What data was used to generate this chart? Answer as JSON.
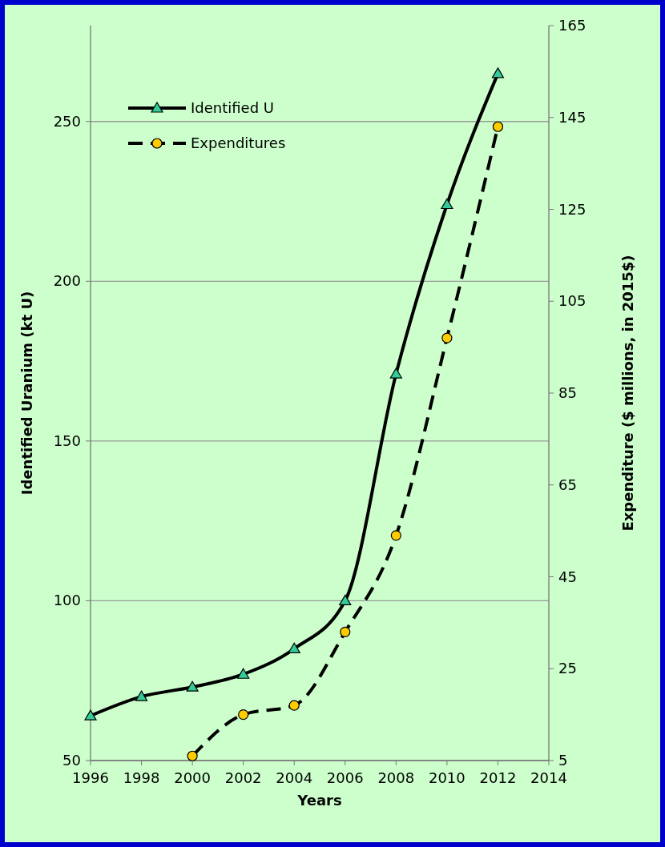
{
  "chart_data": {
    "type": "line",
    "xlabel": "Years",
    "ylabel": "Identified Uranium (kt U)",
    "y2label": "Expenditure ($ millions, in 2015$)",
    "x": [
      1996,
      1998,
      2000,
      2002,
      2004,
      2006,
      2008,
      2010,
      2012
    ],
    "series": [
      {
        "name": "Identified U",
        "color": "#33cc99",
        "marker": "triangle",
        "line_style": "solid",
        "values": [
          64,
          70,
          73,
          77,
          85,
          100,
          171,
          224,
          265
        ]
      },
      {
        "name": "Expenditures",
        "color": "#ffcc00",
        "marker": "circle",
        "line_style": "dashed",
        "axis": "y2",
        "x": [
          2000,
          2002,
          2004,
          2006,
          2008,
          2010,
          2012
        ],
        "values": [
          6,
          15,
          17,
          33,
          54,
          97,
          143
        ]
      }
    ],
    "xlim": [
      1996,
      2014
    ],
    "xticks": [
      1996,
      1998,
      2000,
      2002,
      2004,
      2006,
      2008,
      2010,
      2012,
      2014
    ],
    "ylim": [
      50,
      280
    ],
    "yticks": [
      50,
      100,
      150,
      200,
      250
    ],
    "y2lim": [
      5,
      165
    ],
    "y2ticks": [
      5,
      25,
      45,
      65,
      85,
      105,
      125,
      145,
      165
    ],
    "grid": "y",
    "legend": "top left"
  }
}
